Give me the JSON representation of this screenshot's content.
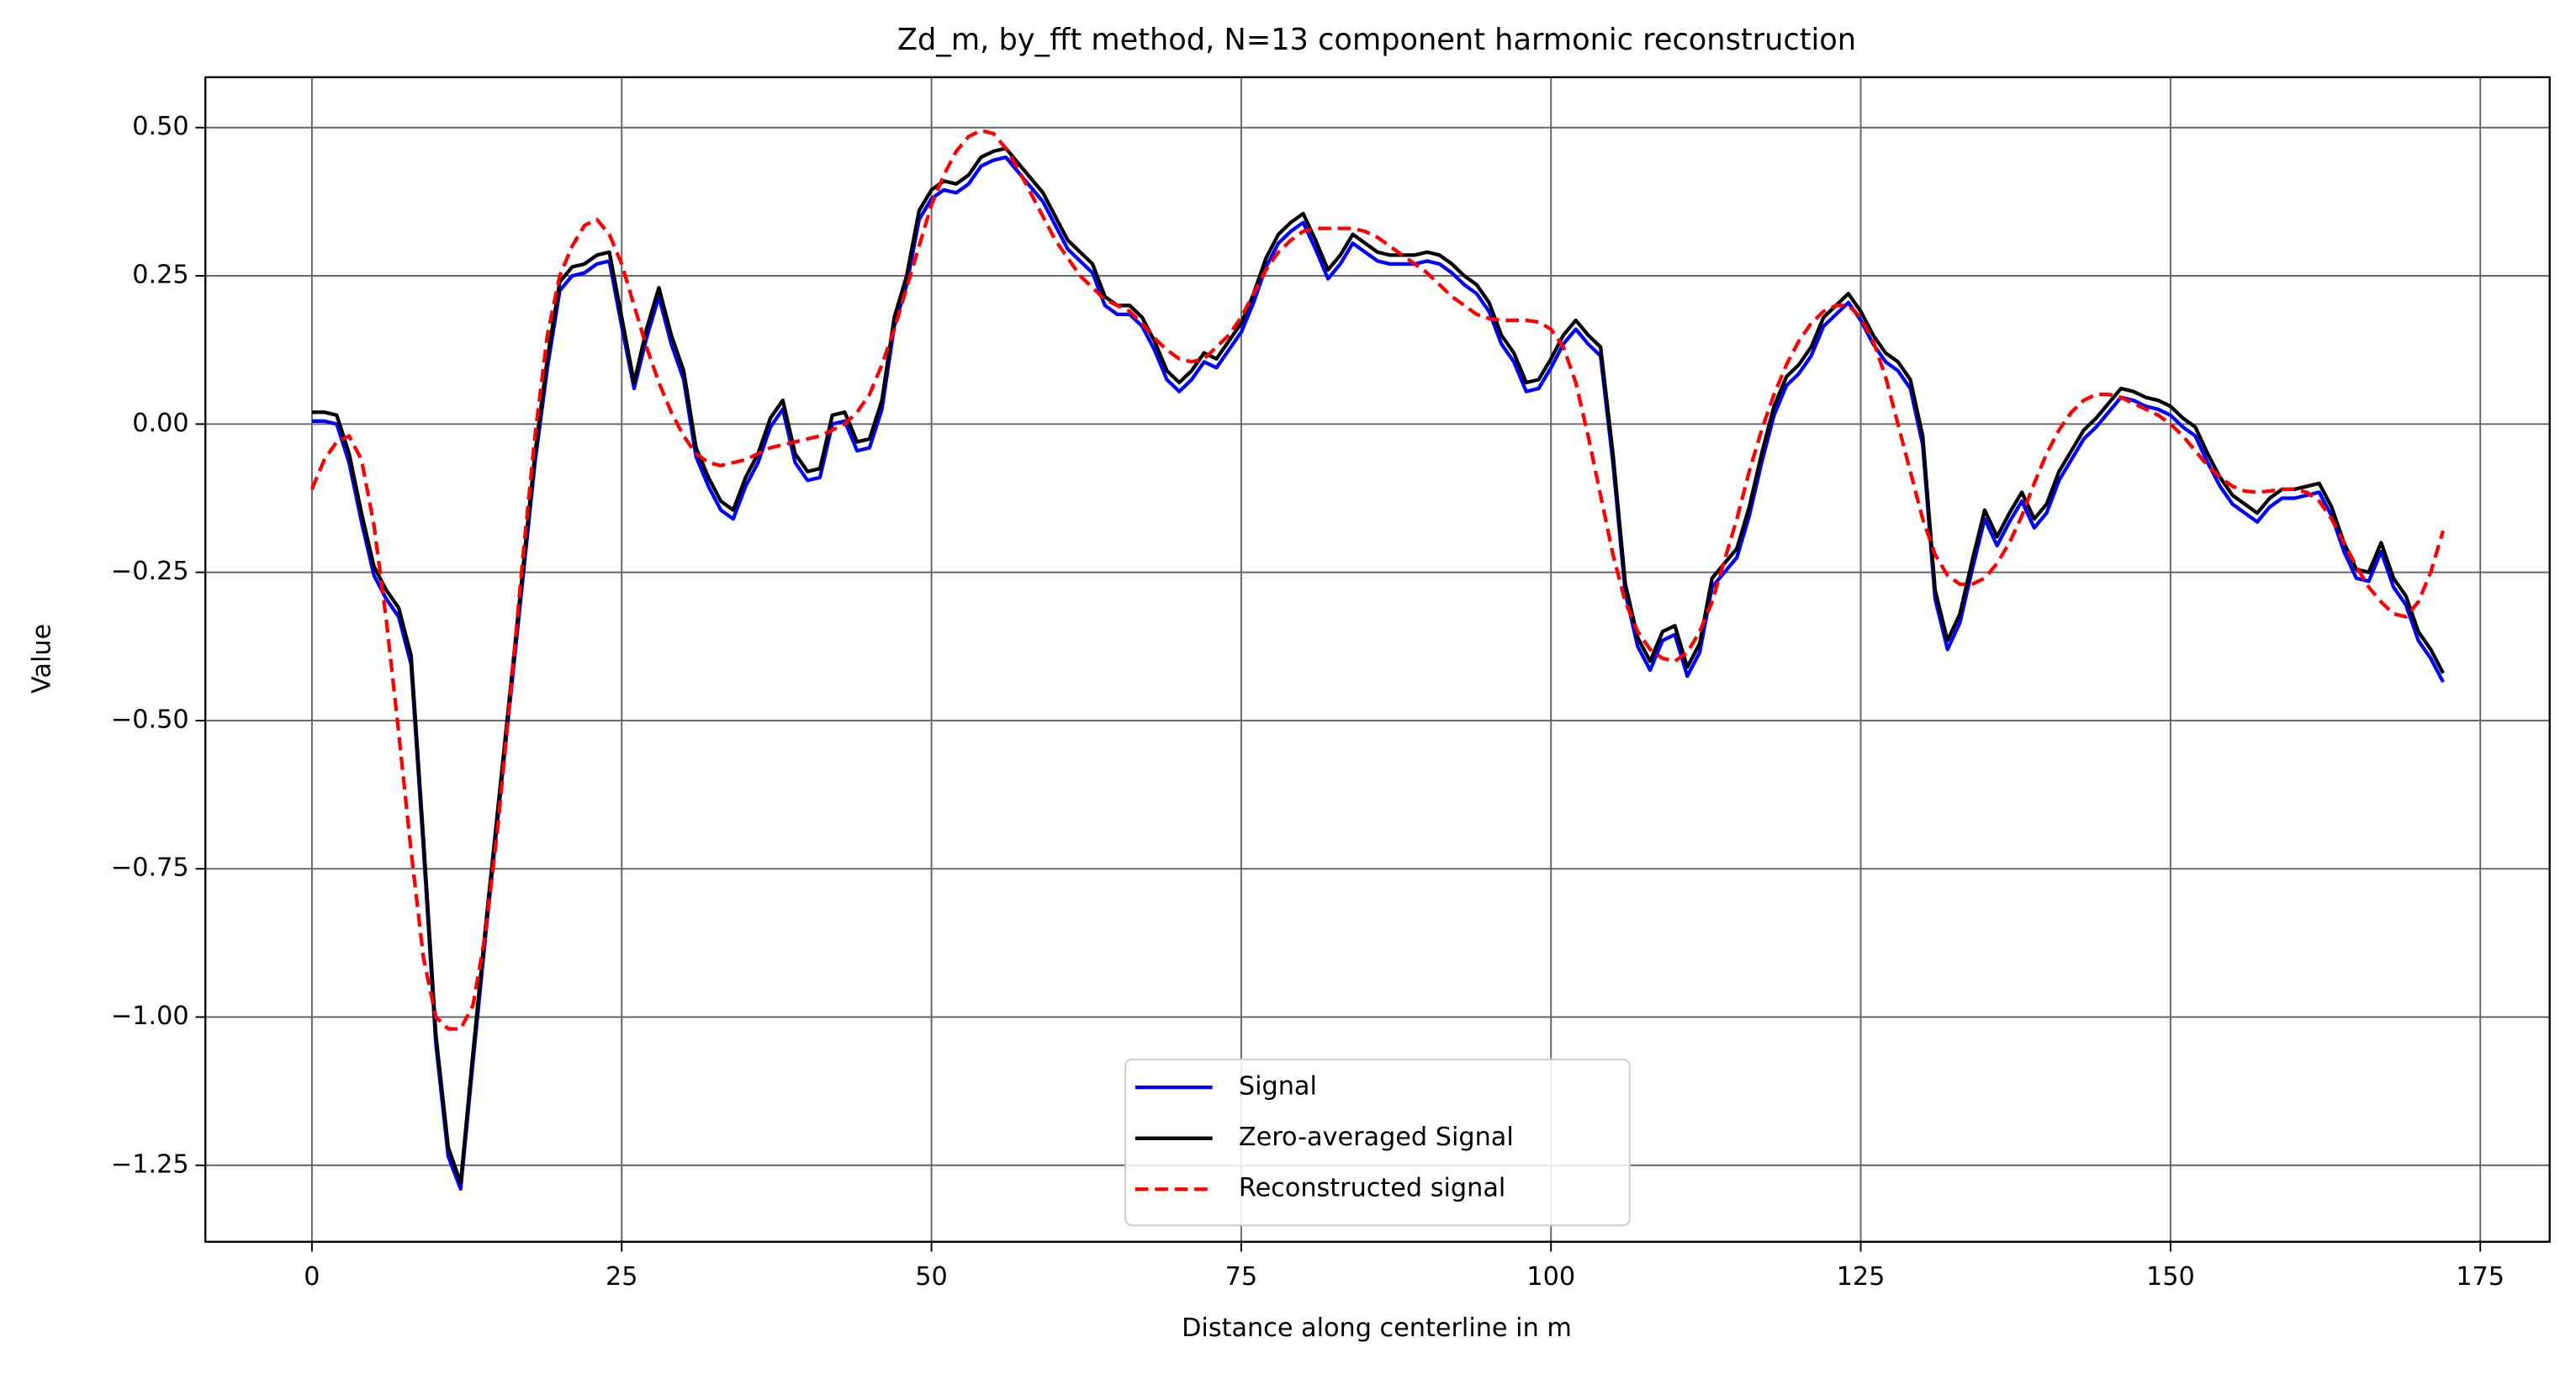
{
  "chart_data": {
    "type": "line",
    "title": "Zd_m, by_fft method, N=13 component harmonic reconstruction",
    "xlabel": "Distance along centerline in m",
    "ylabel": "Value",
    "xlim": [
      -8.6,
      180.6
    ],
    "ylim": [
      -1.379,
      0.585
    ],
    "xticks": [
      0,
      25,
      50,
      75,
      100,
      125,
      150,
      175
    ],
    "yticks": [
      {
        "value": 0.5,
        "label": "0.50"
      },
      {
        "value": 0.25,
        "label": "0.25"
      },
      {
        "value": 0,
        "label": "0.00"
      },
      {
        "value": -0.25,
        "label": "−0.25"
      },
      {
        "value": -0.5,
        "label": "−0.50"
      },
      {
        "value": -0.75,
        "label": "−0.75"
      },
      {
        "value": -1,
        "label": "−1.00"
      },
      {
        "value": -1.25,
        "label": "−1.25"
      }
    ],
    "grid": true,
    "legend": "lower center",
    "x": [
      0,
      1,
      2,
      3,
      4,
      5,
      6,
      7,
      8,
      9,
      10,
      11,
      12,
      13,
      14,
      15,
      16,
      17,
      18,
      19,
      20,
      21,
      22,
      23,
      24,
      25,
      26,
      27,
      28,
      29,
      30,
      31,
      32,
      33,
      34,
      35,
      36,
      37,
      38,
      39,
      40,
      41,
      42,
      43,
      44,
      45,
      46,
      47,
      48,
      49,
      50,
      51,
      52,
      53,
      54,
      55,
      56,
      57,
      58,
      59,
      60,
      61,
      62,
      63,
      64,
      65,
      66,
      67,
      68,
      69,
      70,
      71,
      72,
      73,
      74,
      75,
      76,
      77,
      78,
      79,
      80,
      81,
      82,
      83,
      84,
      85,
      86,
      87,
      88,
      89,
      90,
      91,
      92,
      93,
      94,
      95,
      96,
      97,
      98,
      99,
      100,
      101,
      102,
      103,
      104,
      105,
      106,
      107,
      108,
      109,
      110,
      111,
      112,
      113,
      114,
      115,
      116,
      117,
      118,
      119,
      120,
      121,
      122,
      123,
      124,
      125,
      126,
      127,
      128,
      129,
      130,
      131,
      132,
      133,
      134,
      135,
      136,
      137,
      138,
      139,
      140,
      141,
      142,
      143,
      144,
      145,
      146,
      147,
      148,
      149,
      150,
      151,
      152,
      153,
      154,
      155,
      156,
      157,
      158,
      159,
      160,
      161,
      162,
      163,
      164,
      165,
      166,
      167,
      168,
      169,
      170,
      171,
      172
    ],
    "series": [
      {
        "name": "Signal",
        "color": "#0000ff",
        "dash": "solid",
        "values": [
          0.005,
          0.005,
          0,
          -0.065,
          -0.165,
          -0.255,
          -0.295,
          -0.325,
          -0.405,
          -0.715,
          -1.045,
          -1.235,
          -1.29,
          -1.075,
          -0.865,
          -0.665,
          -0.465,
          -0.265,
          -0.065,
          0.095,
          0.225,
          0.25,
          0.255,
          0.27,
          0.275,
          0.165,
          0.06,
          0.145,
          0.215,
          0.135,
          0.075,
          -0.055,
          -0.105,
          -0.145,
          -0.16,
          -0.105,
          -0.065,
          -0.005,
          0.025,
          -0.065,
          -0.095,
          -0.09,
          0,
          0.005,
          -0.045,
          -0.04,
          0.025,
          0.165,
          0.235,
          0.345,
          0.38,
          0.395,
          0.39,
          0.405,
          0.435,
          0.445,
          0.45,
          0.425,
          0.4,
          0.375,
          0.335,
          0.295,
          0.275,
          0.255,
          0.2,
          0.185,
          0.185,
          0.165,
          0.125,
          0.075,
          0.055,
          0.075,
          0.105,
          0.095,
          0.125,
          0.155,
          0.205,
          0.265,
          0.305,
          0.325,
          0.34,
          0.295,
          0.245,
          0.27,
          0.305,
          0.29,
          0.275,
          0.27,
          0.27,
          0.27,
          0.275,
          0.27,
          0.255,
          0.235,
          0.22,
          0.19,
          0.135,
          0.105,
          0.055,
          0.06,
          0.095,
          0.135,
          0.16,
          0.135,
          0.115,
          -0.065,
          -0.285,
          -0.375,
          -0.415,
          -0.365,
          -0.355,
          -0.425,
          -0.385,
          -0.275,
          -0.25,
          -0.225,
          -0.155,
          -0.065,
          0.015,
          0.065,
          0.085,
          0.115,
          0.165,
          0.185,
          0.205,
          0.175,
          0.135,
          0.105,
          0.09,
          0.06,
          -0.035,
          -0.295,
          -0.38,
          -0.335,
          -0.245,
          -0.16,
          -0.205,
          -0.165,
          -0.13,
          -0.175,
          -0.15,
          -0.095,
          -0.06,
          -0.025,
          -0.005,
          0.02,
          0.045,
          0.04,
          0.03,
          0.025,
          0.015,
          -0.005,
          -0.02,
          -0.065,
          -0.105,
          -0.135,
          -0.15,
          -0.165,
          -0.14,
          -0.125,
          -0.125,
          -0.12,
          -0.115,
          -0.155,
          -0.215,
          -0.26,
          -0.265,
          -0.215,
          -0.275,
          -0.305,
          -0.365,
          -0.395,
          -0.435
        ]
      },
      {
        "name": "Zero-averaged Signal",
        "color": "#000000",
        "dash": "solid",
        "values": [
          0.02,
          0.02,
          0.015,
          -0.05,
          -0.15,
          -0.24,
          -0.28,
          -0.31,
          -0.39,
          -0.7,
          -1.03,
          -1.22,
          -1.28,
          -1.06,
          -0.85,
          -0.65,
          -0.45,
          -0.25,
          -0.05,
          0.11,
          0.24,
          0.265,
          0.27,
          0.285,
          0.29,
          0.18,
          0.07,
          0.16,
          0.23,
          0.15,
          0.09,
          -0.04,
          -0.09,
          -0.13,
          -0.145,
          -0.09,
          -0.05,
          0.01,
          0.04,
          -0.05,
          -0.08,
          -0.075,
          0.015,
          0.02,
          -0.03,
          -0.025,
          0.04,
          0.18,
          0.25,
          0.36,
          0.395,
          0.41,
          0.405,
          0.42,
          0.45,
          0.46,
          0.465,
          0.44,
          0.415,
          0.39,
          0.35,
          0.31,
          0.29,
          0.27,
          0.215,
          0.2,
          0.2,
          0.18,
          0.14,
          0.09,
          0.07,
          0.09,
          0.12,
          0.11,
          0.14,
          0.17,
          0.22,
          0.28,
          0.32,
          0.34,
          0.355,
          0.31,
          0.26,
          0.285,
          0.32,
          0.305,
          0.29,
          0.285,
          0.285,
          0.285,
          0.29,
          0.285,
          0.27,
          0.25,
          0.235,
          0.205,
          0.15,
          0.12,
          0.07,
          0.075,
          0.11,
          0.15,
          0.175,
          0.15,
          0.13,
          -0.05,
          -0.27,
          -0.36,
          -0.4,
          -0.35,
          -0.34,
          -0.41,
          -0.37,
          -0.26,
          -0.235,
          -0.21,
          -0.14,
          -0.05,
          0.03,
          0.08,
          0.1,
          0.13,
          0.18,
          0.2,
          0.22,
          0.19,
          0.15,
          0.12,
          0.105,
          0.075,
          -0.02,
          -0.28,
          -0.365,
          -0.32,
          -0.23,
          -0.145,
          -0.19,
          -0.15,
          -0.115,
          -0.16,
          -0.135,
          -0.08,
          -0.045,
          -0.01,
          0.01,
          0.035,
          0.06,
          0.055,
          0.045,
          0.04,
          0.03,
          0.01,
          -0.005,
          -0.05,
          -0.09,
          -0.12,
          -0.135,
          -0.15,
          -0.125,
          -0.11,
          -0.11,
          -0.105,
          -0.1,
          -0.14,
          -0.2,
          -0.245,
          -0.25,
          -0.2,
          -0.26,
          -0.29,
          -0.35,
          -0.38,
          -0.42
        ]
      },
      {
        "name": "Reconstructed signal",
        "color": "#ff0000",
        "dash": "dashed",
        "values": [
          -0.11,
          -0.06,
          -0.03,
          -0.02,
          -0.06,
          -0.17,
          -0.33,
          -0.52,
          -0.72,
          -0.9,
          -1.0,
          -1.02,
          -1.02,
          -0.98,
          -0.86,
          -0.68,
          -0.46,
          -0.23,
          -0.02,
          0.15,
          0.25,
          0.3,
          0.335,
          0.345,
          0.32,
          0.27,
          0.2,
          0.13,
          0.07,
          0.02,
          -0.02,
          -0.05,
          -0.065,
          -0.07,
          -0.065,
          -0.06,
          -0.05,
          -0.04,
          -0.035,
          -0.03,
          -0.025,
          -0.02,
          -0.01,
          0.0,
          0.02,
          0.05,
          0.1,
          0.16,
          0.23,
          0.3,
          0.37,
          0.42,
          0.46,
          0.485,
          0.495,
          0.49,
          0.465,
          0.43,
          0.39,
          0.35,
          0.31,
          0.28,
          0.25,
          0.23,
          0.21,
          0.2,
          0.19,
          0.17,
          0.145,
          0.125,
          0.11,
          0.105,
          0.11,
          0.13,
          0.15,
          0.18,
          0.22,
          0.26,
          0.29,
          0.31,
          0.325,
          0.33,
          0.33,
          0.33,
          0.33,
          0.325,
          0.315,
          0.3,
          0.285,
          0.27,
          0.255,
          0.235,
          0.215,
          0.2,
          0.185,
          0.178,
          0.175,
          0.175,
          0.175,
          0.172,
          0.16,
          0.13,
          0.07,
          -0.02,
          -0.12,
          -0.22,
          -0.3,
          -0.35,
          -0.38,
          -0.395,
          -0.4,
          -0.385,
          -0.35,
          -0.3,
          -0.23,
          -0.16,
          -0.08,
          -0.01,
          0.05,
          0.1,
          0.14,
          0.17,
          0.19,
          0.2,
          0.2,
          0.18,
          0.14,
          0.08,
          0.0,
          -0.08,
          -0.16,
          -0.22,
          -0.255,
          -0.27,
          -0.27,
          -0.26,
          -0.235,
          -0.2,
          -0.155,
          -0.1,
          -0.05,
          -0.01,
          0.02,
          0.04,
          0.05,
          0.05,
          0.045,
          0.035,
          0.025,
          0.015,
          0.0,
          -0.02,
          -0.045,
          -0.07,
          -0.09,
          -0.105,
          -0.113,
          -0.115,
          -0.113,
          -0.11,
          -0.11,
          -0.115,
          -0.13,
          -0.16,
          -0.2,
          -0.24,
          -0.275,
          -0.3,
          -0.32,
          -0.325,
          -0.3,
          -0.25,
          -0.18
        ]
      }
    ]
  }
}
